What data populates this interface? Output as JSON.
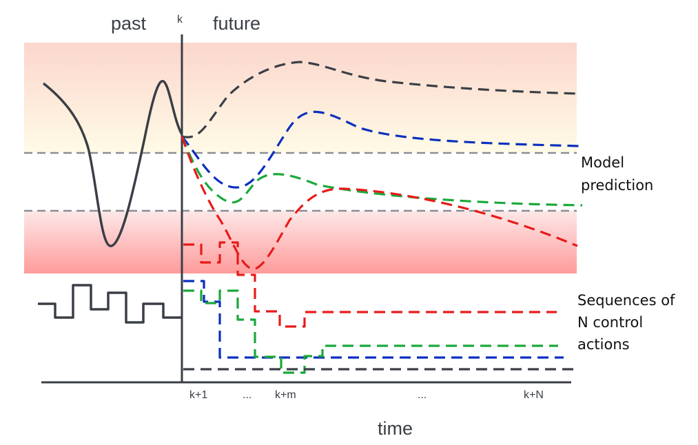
{
  "labels": {
    "past": "past",
    "future": "future",
    "k": "k",
    "time": "time",
    "model_prediction": [
      "Model",
      "prediction"
    ],
    "control_actions": [
      "Sequences of",
      "N control",
      "actions"
    ]
  },
  "ticks": [
    "k+1",
    "...",
    "k+m",
    "...",
    "k+N"
  ],
  "colors": {
    "past_signal": "#3a3e46",
    "prediction_dark": "#3a3e46",
    "prediction_blue": "#0a2fbf",
    "prediction_green": "#1aa83a",
    "prediction_red": "#e81a1a",
    "reference_lines": "#8a8d93",
    "upper_band_top": "#fbd6cc",
    "upper_band_bottom": "#fffbe6",
    "lower_band_top": "#fde8e8",
    "lower_band_bottom": "#ff9b9b"
  }
}
